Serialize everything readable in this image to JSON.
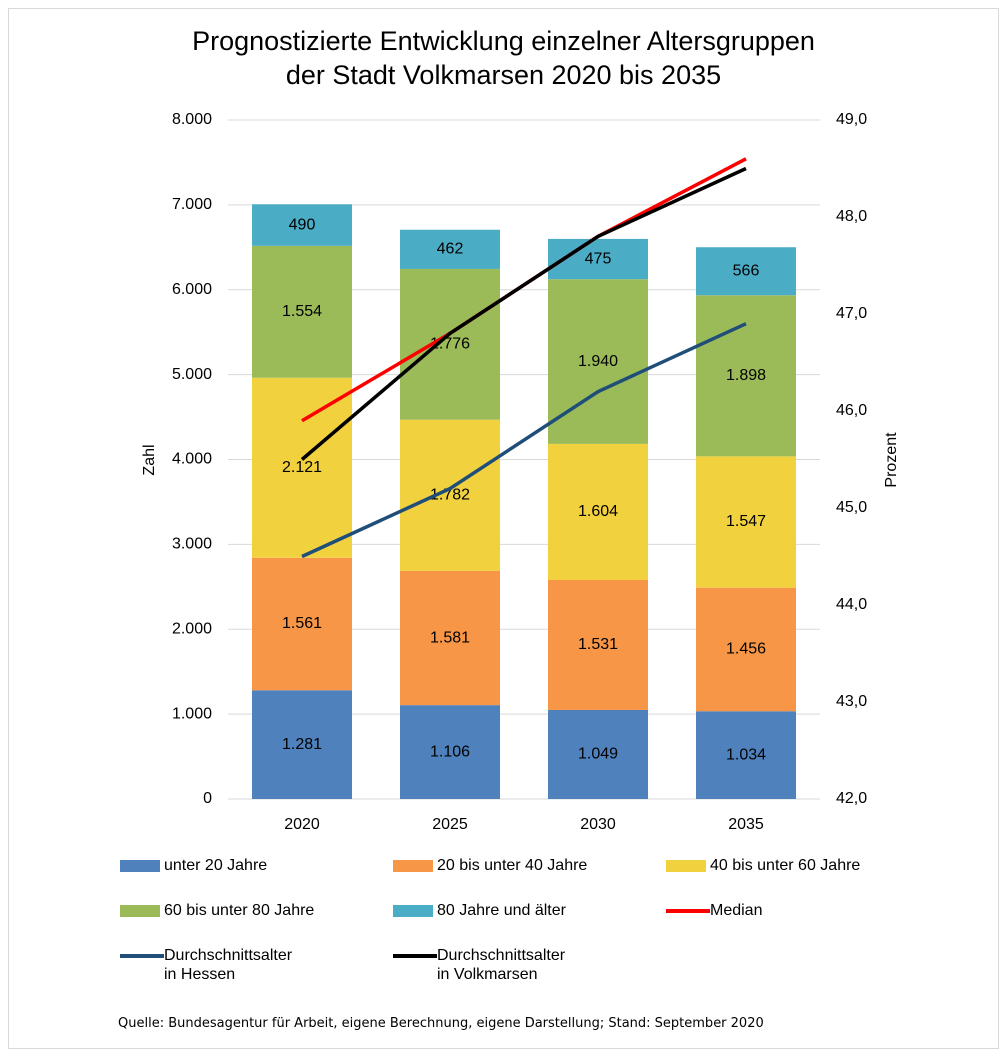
{
  "chart_data": {
    "type": "bar",
    "stacked": true,
    "title": "Prognostizierte Entwicklung einzelner Altersgruppen\nder Stadt Volkmarsen 2020 bis 2035",
    "ylabel": "Zahl",
    "y2label": "Prozent",
    "categories": [
      "2020",
      "2025",
      "2030",
      "2035"
    ],
    "series": [
      {
        "name": "unter 20 Jahre",
        "color": "#4f81bd",
        "values": [
          1281,
          1106,
          1049,
          1034
        ],
        "value_labels": [
          "1.281",
          "1.106",
          "1.049",
          "1.034"
        ]
      },
      {
        "name": "20 bis unter 40 Jahre",
        "color": "#f79646",
        "values": [
          1561,
          1581,
          1531,
          1456
        ],
        "value_labels": [
          "1.561",
          "1.581",
          "1.531",
          "1.456"
        ]
      },
      {
        "name": "40 bis unter 60 Jahre",
        "color": "#f2d13f",
        "values": [
          2121,
          1782,
          1604,
          1547
        ],
        "value_labels": [
          "2.121",
          "1.782",
          "1.604",
          "1.547"
        ]
      },
      {
        "name": "60 bis unter 80 Jahre",
        "color": "#9bbb59",
        "values": [
          1554,
          1776,
          1940,
          1898
        ],
        "value_labels": [
          "1.554",
          "1.776",
          "1.940",
          "1.898"
        ]
      },
      {
        "name": "80 Jahre und älter",
        "color": "#4bacc6",
        "values": [
          490,
          462,
          475,
          566
        ]
      },
      {
        "name": "Median",
        "type": "line",
        "axis": "y2",
        "color": "#ff0000",
        "values": [
          45.9,
          46.8,
          47.8,
          48.6
        ]
      },
      {
        "name": "Durchschnittsalter\nin Hessen",
        "type": "line",
        "axis": "y2",
        "color": "#1f4e79",
        "values": [
          44.5,
          45.2,
          46.2,
          46.9
        ]
      },
      {
        "name": "Durchschnittsalter\nin Volkmarsen",
        "type": "line",
        "axis": "y2",
        "color": "#000000",
        "values": [
          45.5,
          46.8,
          47.8,
          48.5
        ]
      }
    ],
    "ylim": [
      0,
      8000
    ],
    "yticks": [
      0,
      {
        "value": 1000,
        "label": "1.000"
      },
      {
        "value": 2000,
        "label": "2.000"
      },
      {
        "value": 3000,
        "label": "3.000"
      },
      {
        "value": 4000,
        "label": "4.000"
      },
      {
        "value": 5000,
        "label": "5.000"
      },
      {
        "value": 6000,
        "label": "6.000"
      },
      {
        "value": 7000,
        "label": "7.000"
      },
      {
        "value": 8000,
        "label": "8.000"
      }
    ],
    "y2lim": [
      42,
      49
    ],
    "y2ticks": [
      {
        "value": 42,
        "label": "42,0"
      },
      {
        "value": 43,
        "label": "43,0"
      },
      {
        "value": 44,
        "label": "44,0"
      },
      {
        "value": 45,
        "label": "45,0"
      },
      {
        "value": 46,
        "label": "46,0"
      },
      {
        "value": 47,
        "label": "47,0"
      },
      {
        "value": 48,
        "label": "48,0"
      },
      {
        "value": 49,
        "label": "49,0"
      }
    ],
    "grid": true,
    "legend": "bottom",
    "source": "Quelle: Bundesagentur für Arbeit, eigene Berechnung, eigene Darstellung; Stand: September 2020"
  }
}
